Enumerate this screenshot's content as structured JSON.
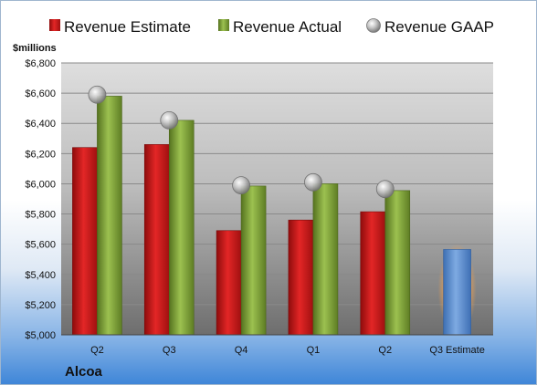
{
  "company": "Alcoa",
  "chart_data": {
    "type": "bar",
    "ylabel": "$millions",
    "ylim": [
      5000,
      6800
    ],
    "ytick_step": 200,
    "grid": true,
    "legend_position": "top",
    "categories": [
      "Q2",
      "Q3",
      "Q4",
      "Q1",
      "Q2",
      "Q3 Estimate"
    ],
    "series": [
      {
        "name": "Revenue Estimate",
        "kind": "bar",
        "color": "#d01818",
        "values": [
          6240,
          6260,
          5690,
          5760,
          5815,
          null
        ]
      },
      {
        "name": "Revenue Actual",
        "kind": "bar",
        "color": "#7fa33a",
        "values": [
          6580,
          6420,
          5985,
          6000,
          5955,
          null
        ]
      },
      {
        "name": "Revenue GAAP",
        "kind": "marker",
        "color": "#a8a8a8",
        "values": [
          6590,
          6420,
          5990,
          6010,
          5965,
          null
        ]
      }
    ],
    "estimate": {
      "category": "Q3 Estimate",
      "value": 5565,
      "color": "#5b8fd0",
      "glow": "#f5a04a"
    }
  }
}
